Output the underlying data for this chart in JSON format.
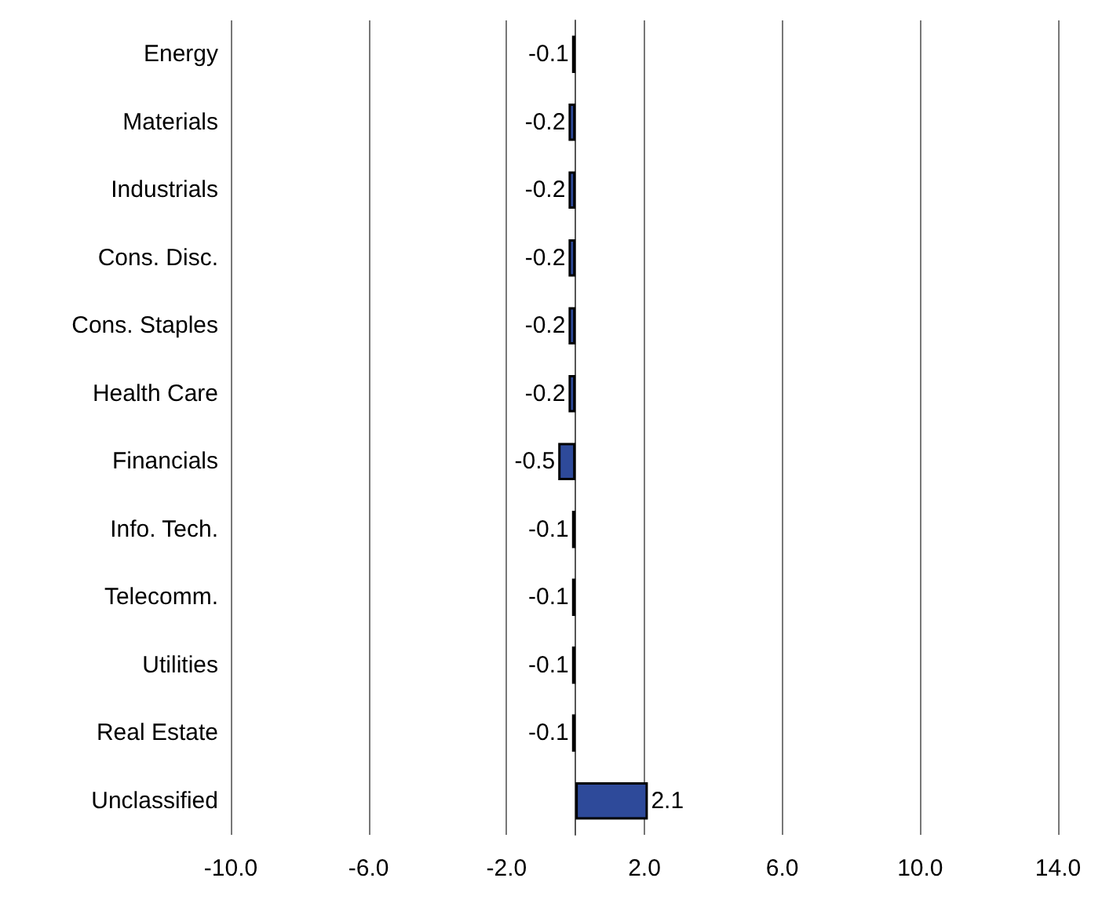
{
  "chart_data": {
    "type": "bar",
    "orientation": "horizontal",
    "categories": [
      "Energy",
      "Materials",
      "Industrials",
      "Cons. Disc.",
      "Cons. Staples",
      "Health Care",
      "Financials",
      "Info. Tech.",
      "Telecomm.",
      "Utilities",
      "Real Estate",
      "Unclassified"
    ],
    "values": [
      -0.1,
      -0.2,
      -0.2,
      -0.2,
      -0.2,
      -0.2,
      -0.5,
      -0.1,
      -0.1,
      -0.1,
      -0.1,
      2.1
    ],
    "color": "#2e4a9a",
    "xlim": [
      -10,
      14
    ],
    "xticks": [
      {
        "value": -10,
        "label": "-10.0"
      },
      {
        "value": -6,
        "label": "-6.0"
      },
      {
        "value": -2,
        "label": "-2.0"
      },
      {
        "value": 2,
        "label": "2.0"
      },
      {
        "value": 6,
        "label": "6.0"
      },
      {
        "value": 10,
        "label": "10.0"
      },
      {
        "value": 14,
        "label": "14.0"
      }
    ],
    "data_labels": true,
    "grid": "x"
  }
}
